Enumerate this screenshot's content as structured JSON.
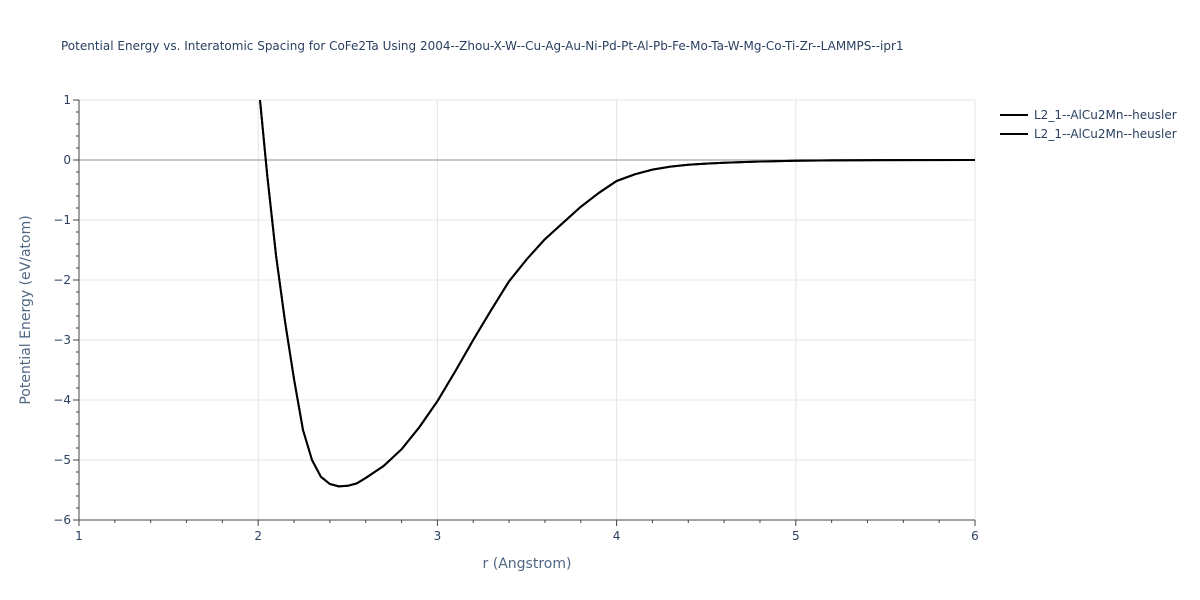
{
  "chart_data": {
    "type": "line",
    "title": "Potential Energy vs. Interatomic Spacing for CoFe2Ta Using 2004--Zhou-X-W--Cu-Ag-Au-Ni-Pd-Pt-Al-Pb-Fe-Mo-Ta-W-Mg-Co-Ti-Zr--LAMMPS--ipr1",
    "xlabel": "r (Angstrom)",
    "ylabel": "Potential Energy (eV/atom)",
    "xlim": [
      1,
      6
    ],
    "ylim": [
      -6,
      1
    ],
    "x_ticks": [
      "1",
      "2",
      "3",
      "4",
      "5",
      "6"
    ],
    "y_ticks": [
      "1",
      "0",
      "−1",
      "−2",
      "−3",
      "−4",
      "−5",
      "−6"
    ],
    "grid": true,
    "legend_position": "top-right",
    "colors": {
      "line": "#000000",
      "grid": "#e5e5e5",
      "zero_line": "#c8c8c8",
      "text": "#2a3f5f"
    },
    "series": [
      {
        "name": "L2_1--AlCu2Mn--heusler",
        "x": [
          2.01,
          2.05,
          2.1,
          2.15,
          2.2,
          2.25,
          2.3,
          2.35,
          2.4,
          2.45,
          2.5,
          2.55,
          2.6,
          2.7,
          2.8,
          2.9,
          3.0,
          3.1,
          3.2,
          3.3,
          3.4,
          3.5,
          3.6,
          3.7,
          3.8,
          3.9,
          4.0,
          4.1,
          4.2,
          4.3,
          4.4,
          4.5,
          4.6,
          4.8,
          5.0,
          5.2,
          5.5,
          6.0
        ],
        "y": [
          1.0,
          -0.25,
          -1.6,
          -2.7,
          -3.65,
          -4.5,
          -5.0,
          -5.28,
          -5.4,
          -5.44,
          -5.43,
          -5.39,
          -5.3,
          -5.1,
          -4.82,
          -4.45,
          -4.02,
          -3.52,
          -3.0,
          -2.5,
          -2.02,
          -1.65,
          -1.32,
          -1.05,
          -0.78,
          -0.55,
          -0.35,
          -0.24,
          -0.16,
          -0.11,
          -0.08,
          -0.06,
          -0.045,
          -0.025,
          -0.012,
          -0.006,
          -0.002,
          0.0
        ]
      },
      {
        "name": "L2_1--AlCu2Mn--heusler",
        "x": [
          2.01,
          2.05,
          2.1,
          2.15,
          2.2,
          2.25,
          2.3,
          2.35,
          2.4,
          2.45,
          2.5,
          2.55,
          2.6,
          2.7,
          2.8,
          2.9,
          3.0,
          3.1,
          3.2,
          3.3,
          3.4,
          3.5,
          3.6,
          3.7,
          3.8,
          3.9,
          4.0,
          4.1,
          4.2,
          4.3,
          4.4,
          4.5,
          4.6,
          4.8,
          5.0,
          5.2,
          5.5,
          6.0
        ],
        "y": [
          1.0,
          -0.25,
          -1.6,
          -2.7,
          -3.65,
          -4.5,
          -5.0,
          -5.28,
          -5.4,
          -5.44,
          -5.43,
          -5.39,
          -5.3,
          -5.1,
          -4.82,
          -4.45,
          -4.02,
          -3.52,
          -3.0,
          -2.5,
          -2.02,
          -1.65,
          -1.32,
          -1.05,
          -0.78,
          -0.55,
          -0.35,
          -0.24,
          -0.16,
          -0.11,
          -0.08,
          -0.06,
          -0.045,
          -0.025,
          -0.012,
          -0.006,
          -0.002,
          0.0
        ]
      }
    ]
  }
}
